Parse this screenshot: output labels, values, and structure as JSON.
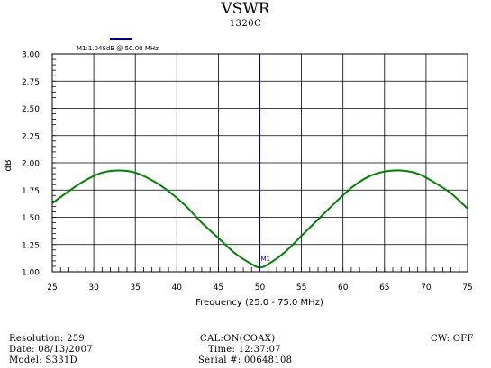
{
  "chart_data": {
    "type": "line",
    "title": "VSWR",
    "subtitle": "1320C",
    "xlabel": "Frequency (25.0 - 75.0 MHz)",
    "ylabel": "dB",
    "xlim": [
      25,
      75
    ],
    "ylim": [
      1.0,
      3.0
    ],
    "x_ticks": [
      25,
      30,
      35,
      40,
      45,
      50,
      55,
      60,
      65,
      70,
      75
    ],
    "y_ticks": [
      "1.00",
      "1.25",
      "1.50",
      "1.75",
      "2.00",
      "2.25",
      "2.50",
      "2.75",
      "3.00"
    ],
    "grid": true,
    "line_color": "#008000",
    "marker_color": "#0000aa",
    "series": [
      {
        "x": [
          25,
          27,
          29,
          31,
          33,
          35,
          37,
          39,
          41,
          43,
          45,
          47,
          49,
          50,
          51,
          53,
          55,
          57,
          59,
          61,
          63,
          65,
          67,
          69,
          71,
          73,
          75
        ],
        "values": [
          1.63,
          1.74,
          1.84,
          1.91,
          1.93,
          1.91,
          1.84,
          1.74,
          1.61,
          1.45,
          1.31,
          1.17,
          1.07,
          1.04,
          1.07,
          1.18,
          1.33,
          1.48,
          1.63,
          1.77,
          1.87,
          1.92,
          1.93,
          1.9,
          1.82,
          1.72,
          1.58
        ]
      }
    ],
    "marker": {
      "label": "M1:1.048dB @ 50.00 MHz",
      "short_label": "M1",
      "x": 50,
      "y": 1.048
    }
  },
  "footer": {
    "resolution": "Resolution:  259",
    "date": "Date: 08/13/2007",
    "model": "Model: S331D",
    "cal": "CAL:ON(COAX)",
    "time": "Time: 12:37:07",
    "serial": "Serial #: 00648108",
    "cw": "CW: OFF"
  }
}
